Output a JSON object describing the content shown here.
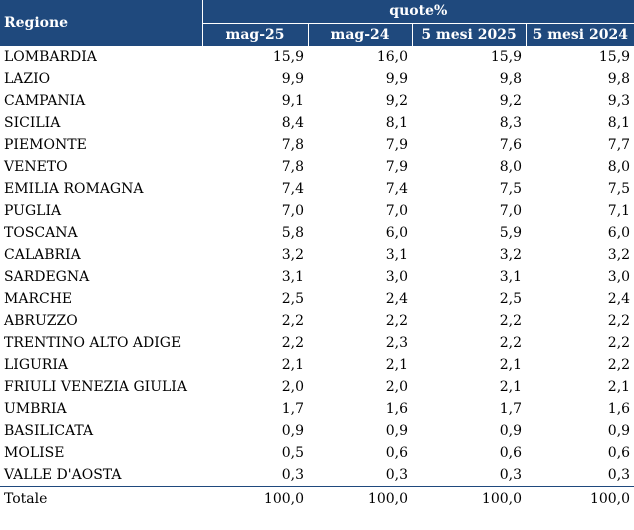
{
  "header": {
    "region_label": "Regione",
    "group_label": "quote%",
    "columns": [
      "mag-25",
      "mag-24",
      "5 mesi 2025",
      "5 mesi 2024"
    ]
  },
  "rows": [
    {
      "name": "LOMBARDIA",
      "values": [
        "15,9",
        "16,0",
        "15,9",
        "15,9"
      ]
    },
    {
      "name": "LAZIO",
      "values": [
        "9,9",
        "9,9",
        "9,8",
        "9,8"
      ]
    },
    {
      "name": "CAMPANIA",
      "values": [
        "9,1",
        "9,2",
        "9,2",
        "9,3"
      ]
    },
    {
      "name": "SICILIA",
      "values": [
        "8,4",
        "8,1",
        "8,3",
        "8,1"
      ]
    },
    {
      "name": "PIEMONTE",
      "values": [
        "7,8",
        "7,9",
        "7,6",
        "7,7"
      ]
    },
    {
      "name": "VENETO",
      "values": [
        "7,8",
        "7,9",
        "8,0",
        "8,0"
      ]
    },
    {
      "name": "EMILIA ROMAGNA",
      "values": [
        "7,4",
        "7,4",
        "7,5",
        "7,5"
      ]
    },
    {
      "name": "PUGLIA",
      "values": [
        "7,0",
        "7,0",
        "7,0",
        "7,1"
      ]
    },
    {
      "name": "TOSCANA",
      "values": [
        "5,8",
        "6,0",
        "5,9",
        "6,0"
      ]
    },
    {
      "name": "CALABRIA",
      "values": [
        "3,2",
        "3,1",
        "3,2",
        "3,2"
      ]
    },
    {
      "name": "SARDEGNA",
      "values": [
        "3,1",
        "3,0",
        "3,1",
        "3,0"
      ]
    },
    {
      "name": "MARCHE",
      "values": [
        "2,5",
        "2,4",
        "2,5",
        "2,4"
      ]
    },
    {
      "name": "ABRUZZO",
      "values": [
        "2,2",
        "2,2",
        "2,2",
        "2,2"
      ]
    },
    {
      "name": "TRENTINO ALTO ADIGE",
      "values": [
        "2,2",
        "2,3",
        "2,2",
        "2,2"
      ]
    },
    {
      "name": "LIGURIA",
      "values": [
        "2,1",
        "2,1",
        "2,1",
        "2,2"
      ]
    },
    {
      "name": "FRIULI VENEZIA GIULIA",
      "values": [
        "2,0",
        "2,0",
        "2,1",
        "2,1"
      ]
    },
    {
      "name": "UMBRIA",
      "values": [
        "1,7",
        "1,6",
        "1,7",
        "1,6"
      ]
    },
    {
      "name": "BASILICATA",
      "values": [
        "0,9",
        "0,9",
        "0,9",
        "0,9"
      ]
    },
    {
      "name": "MOLISE",
      "values": [
        "0,5",
        "0,6",
        "0,6",
        "0,6"
      ]
    },
    {
      "name": "VALLE D'AOSTA",
      "values": [
        "0,3",
        "0,3",
        "0,3",
        "0,3"
      ]
    }
  ],
  "total": {
    "name": "Totale",
    "values": [
      "100,0",
      "100,0",
      "100,0",
      "100,0"
    ]
  },
  "colors": {
    "header_bg": "#1f497d",
    "header_text": "#ffffff"
  }
}
